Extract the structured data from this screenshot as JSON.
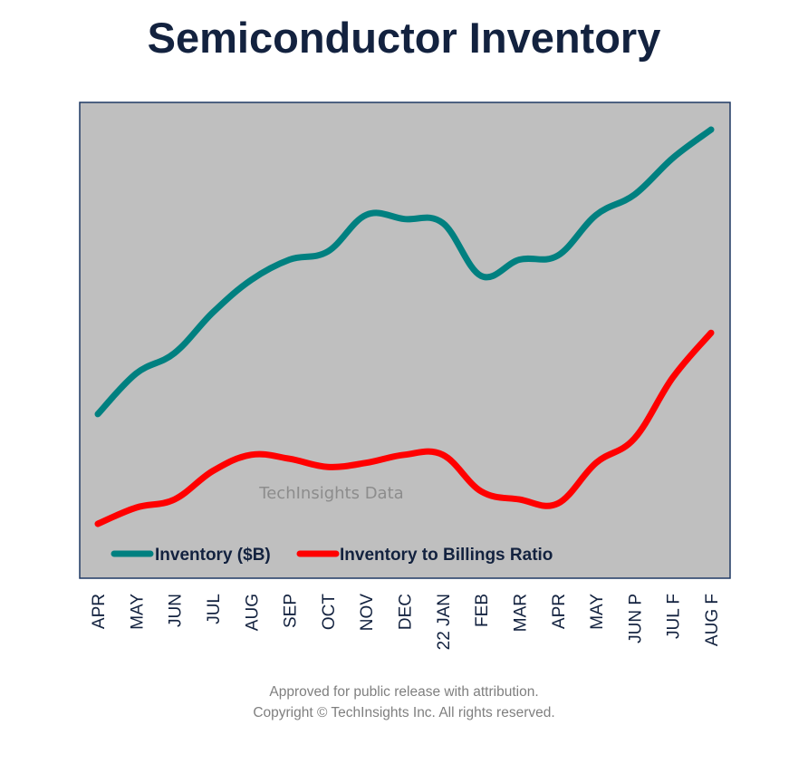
{
  "chart_data": {
    "type": "line",
    "title": "Semiconductor Inventory",
    "watermark": "TechInsights Data",
    "categories": [
      "APR",
      "MAY",
      "JUN",
      "JUL",
      "AUG",
      "SEP",
      "OCT",
      "NOV",
      "DEC",
      "22 JAN",
      "FEB",
      "MAR",
      "APR",
      "MAY",
      "JUN P",
      "JUL F",
      "AUG F"
    ],
    "series": [
      {
        "name": "Inventory  ($B)",
        "color": "#008080",
        "values": [
          0.3,
          0.4,
          0.45,
          0.55,
          0.63,
          0.68,
          0.7,
          0.79,
          0.78,
          0.77,
          0.64,
          0.68,
          0.69,
          0.79,
          0.84,
          0.93,
          1.0
        ]
      },
      {
        "name": "Inventory to Billings Ratio",
        "color": "#ff0000",
        "values": [
          0.03,
          0.07,
          0.09,
          0.16,
          0.2,
          0.19,
          0.17,
          0.18,
          0.2,
          0.2,
          0.11,
          0.09,
          0.08,
          0.18,
          0.24,
          0.39,
          0.5
        ]
      }
    ],
    "ylim": [
      0,
      1.05
    ],
    "grid": false,
    "legend_position": "bottom-left inside",
    "plot_background": "#bfbfbf",
    "plot_border": "#1f3864",
    "title_color": "#13223f"
  },
  "footer": {
    "line1": "Approved for public release with attribution.",
    "line2": "Copyright ©  TechInsights Inc.  All rights reserved."
  }
}
